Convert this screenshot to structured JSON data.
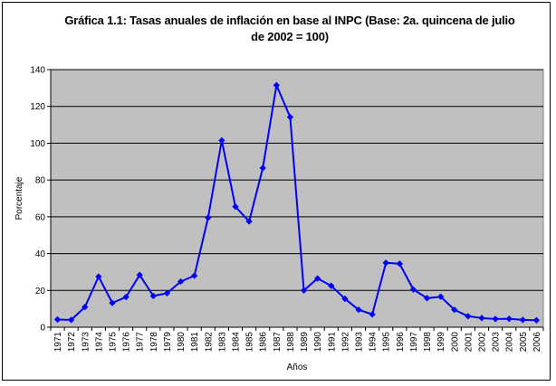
{
  "chart_data": {
    "type": "line",
    "title_line1": "Gráfica 1.1: Tasas anuales de inflación en base al INPC (Base: 2a. quincena de julio",
    "title_line2": "de 2002 = 100)",
    "xlabel": "Años",
    "ylabel": "Porcentaje",
    "ylim": [
      0,
      140
    ],
    "yticks": [
      "0",
      "20",
      "40",
      "60",
      "80",
      "100",
      "120",
      "140"
    ],
    "grid": true,
    "legend": "none",
    "categories": [
      "1971",
      "1972",
      "1973",
      "1974",
      "1975",
      "1976",
      "1977",
      "1978",
      "1979",
      "1980",
      "1981",
      "1982",
      "1983",
      "1984",
      "1985",
      "1986",
      "1987",
      "1988",
      "1989",
      "1990",
      "1991",
      "1992",
      "1993",
      "1994",
      "1995",
      "1996",
      "1997",
      "1998",
      "1999",
      "2000",
      "2001",
      "2002",
      "2003",
      "2004",
      "2005",
      "2006"
    ],
    "series": [
      {
        "color": "#0000ff",
        "values": [
          4.2,
          4.0,
          11.0,
          27.5,
          13.2,
          16.4,
          28.4,
          17.0,
          18.5,
          24.8,
          28.0,
          59.5,
          101.5,
          65.5,
          57.5,
          86.5,
          131.5,
          114.2,
          20.0,
          26.5,
          22.5,
          15.5,
          9.5,
          7.0,
          35.0,
          34.5,
          20.5,
          15.8,
          16.6,
          9.5,
          6.0,
          5.0,
          4.5,
          4.6,
          4.0,
          3.8
        ]
      }
    ]
  },
  "colors": {
    "plot_background": "#c0c0c0",
    "gridline": "#000000",
    "line": "#0000ff"
  }
}
